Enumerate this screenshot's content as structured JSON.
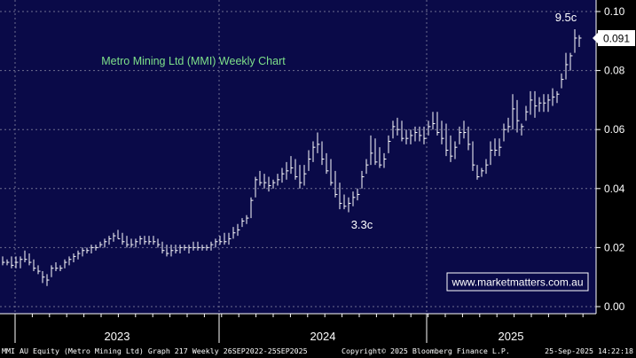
{
  "chart_data": {
    "type": "ohlc",
    "title": "Metro Mining Ltd (MMI) Weekly Chart",
    "ylim": [
      0.0,
      0.1
    ],
    "y_ticks": [
      "0.00",
      "0.02",
      "0.04",
      "0.06",
      "0.08",
      "0.10"
    ],
    "x_year_labels": [
      "2023",
      "2024",
      "2025"
    ],
    "last_price": "0.091",
    "annotations": [
      {
        "text": "9.5c"
      },
      {
        "text": "3.3c"
      }
    ],
    "watermark": "www.marketmatters.com.au",
    "weekly_highs": [
      0.017,
      0.016,
      0.017,
      0.017,
      0.017,
      0.019,
      0.018,
      0.016,
      0.014,
      0.012,
      0.011,
      0.014,
      0.015,
      0.014,
      0.016,
      0.017,
      0.018,
      0.019,
      0.02,
      0.02,
      0.021,
      0.021,
      0.022,
      0.023,
      0.024,
      0.025,
      0.026,
      0.025,
      0.024,
      0.023,
      0.023,
      0.024,
      0.024,
      0.024,
      0.024,
      0.023,
      0.022,
      0.021,
      0.021,
      0.021,
      0.021,
      0.021,
      0.021,
      0.022,
      0.022,
      0.021,
      0.021,
      0.022,
      0.023,
      0.024,
      0.025,
      0.025,
      0.027,
      0.028,
      0.03,
      0.031,
      0.037,
      0.044,
      0.046,
      0.045,
      0.044,
      0.043,
      0.045,
      0.047,
      0.049,
      0.051,
      0.05,
      0.048,
      0.048,
      0.053,
      0.056,
      0.059,
      0.056,
      0.052,
      0.05,
      0.046,
      0.042,
      0.038,
      0.037,
      0.039,
      0.04,
      0.046,
      0.05,
      0.058,
      0.057,
      0.054,
      0.052,
      0.058,
      0.063,
      0.064,
      0.063,
      0.06,
      0.06,
      0.061,
      0.061,
      0.061,
      0.063,
      0.066,
      0.066,
      0.063,
      0.062,
      0.058,
      0.056,
      0.061,
      0.063,
      0.061,
      0.056,
      0.048,
      0.047,
      0.05,
      0.056,
      0.057,
      0.057,
      0.062,
      0.064,
      0.072,
      0.07,
      0.062,
      0.068,
      0.073,
      0.073,
      0.071,
      0.072,
      0.072,
      0.074,
      0.073,
      0.079,
      0.086,
      0.086,
      0.094,
      0.092
    ],
    "weekly_lows": [
      0.014,
      0.014,
      0.013,
      0.013,
      0.013,
      0.015,
      0.014,
      0.012,
      0.011,
      0.008,
      0.007,
      0.01,
      0.012,
      0.012,
      0.013,
      0.014,
      0.015,
      0.016,
      0.017,
      0.018,
      0.018,
      0.019,
      0.02,
      0.02,
      0.021,
      0.022,
      0.023,
      0.021,
      0.02,
      0.02,
      0.02,
      0.021,
      0.021,
      0.021,
      0.021,
      0.02,
      0.018,
      0.017,
      0.017,
      0.018,
      0.018,
      0.019,
      0.018,
      0.019,
      0.019,
      0.019,
      0.019,
      0.019,
      0.02,
      0.021,
      0.021,
      0.021,
      0.023,
      0.024,
      0.027,
      0.028,
      0.03,
      0.037,
      0.041,
      0.04,
      0.039,
      0.04,
      0.041,
      0.042,
      0.043,
      0.045,
      0.043,
      0.04,
      0.041,
      0.046,
      0.049,
      0.052,
      0.048,
      0.045,
      0.041,
      0.037,
      0.033,
      0.033,
      0.032,
      0.034,
      0.036,
      0.04,
      0.045,
      0.048,
      0.048,
      0.047,
      0.047,
      0.052,
      0.057,
      0.058,
      0.056,
      0.055,
      0.055,
      0.056,
      0.056,
      0.055,
      0.058,
      0.06,
      0.058,
      0.055,
      0.051,
      0.049,
      0.05,
      0.055,
      0.057,
      0.053,
      0.046,
      0.043,
      0.044,
      0.045,
      0.048,
      0.051,
      0.051,
      0.056,
      0.059,
      0.06,
      0.059,
      0.058,
      0.063,
      0.065,
      0.064,
      0.066,
      0.066,
      0.066,
      0.068,
      0.069,
      0.074,
      0.077,
      0.08,
      0.086,
      0.088
    ],
    "weekly_closes": [
      0.015,
      0.015,
      0.014,
      0.015,
      0.016,
      0.016,
      0.015,
      0.013,
      0.012,
      0.01,
      0.009,
      0.013,
      0.013,
      0.013,
      0.015,
      0.016,
      0.017,
      0.018,
      0.019,
      0.019,
      0.02,
      0.02,
      0.021,
      0.022,
      0.023,
      0.024,
      0.023,
      0.022,
      0.021,
      0.021,
      0.022,
      0.023,
      0.022,
      0.022,
      0.022,
      0.021,
      0.019,
      0.018,
      0.019,
      0.019,
      0.02,
      0.02,
      0.02,
      0.02,
      0.02,
      0.02,
      0.02,
      0.021,
      0.022,
      0.022,
      0.022,
      0.023,
      0.025,
      0.026,
      0.029,
      0.03,
      0.036,
      0.043,
      0.042,
      0.042,
      0.041,
      0.042,
      0.043,
      0.045,
      0.046,
      0.047,
      0.044,
      0.042,
      0.045,
      0.05,
      0.054,
      0.055,
      0.05,
      0.046,
      0.042,
      0.038,
      0.035,
      0.034,
      0.035,
      0.037,
      0.038,
      0.044,
      0.048,
      0.052,
      0.049,
      0.048,
      0.05,
      0.056,
      0.061,
      0.06,
      0.057,
      0.057,
      0.058,
      0.059,
      0.058,
      0.057,
      0.061,
      0.062,
      0.059,
      0.057,
      0.053,
      0.051,
      0.054,
      0.059,
      0.059,
      0.055,
      0.048,
      0.044,
      0.046,
      0.048,
      0.053,
      0.053,
      0.054,
      0.06,
      0.061,
      0.067,
      0.063,
      0.061,
      0.066,
      0.07,
      0.068,
      0.069,
      0.069,
      0.07,
      0.071,
      0.072,
      0.077,
      0.082,
      0.085,
      0.091,
      0.091
    ]
  },
  "footer": {
    "left": "MMI AU Equity (Metro Mining Ltd) Graph 217  Weekly 26SEP2022-25SEP2025",
    "center": "Copyright© 2025 Bloomberg Finance L.P.",
    "right": "25-Sep-2025 14:22:18"
  },
  "colors": {
    "plot_bg": "#0a0a48",
    "grid": "#6f6f8f",
    "bars": "#ffffff",
    "title": "#7ee08a",
    "watermark_text": "#ffffff",
    "watermark_border": "#ffffff",
    "axis_bg": "#000000"
  }
}
